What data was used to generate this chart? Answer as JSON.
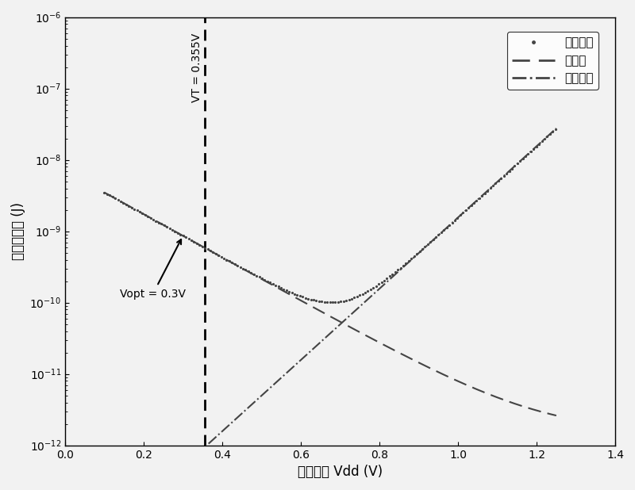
{
  "xlim": [
    0,
    1.4
  ],
  "ylim": [
    1e-12,
    1e-06
  ],
  "vt": 0.355,
  "vopt": 0.3,
  "xlabel": "电源电压 Vdd (V)",
  "ylabel": "每操作能耗 (J)",
  "legend_total": "全部能耗",
  "legend_leakage": "漏能耗",
  "legend_dynamic": "动态能耗",
  "vt_label": "VT = 0.355V",
  "vopt_label": "Vopt = 0.3V",
  "background_color": "#f2f2f2",
  "text_color": "#000000",
  "total_color": "#555555",
  "leakage_color": "#555555",
  "dynamic_color": "#555555",
  "xticks": [
    0,
    0.2,
    0.4,
    0.6,
    0.8,
    1.0,
    1.2,
    1.4
  ],
  "leakage_A": 3.5e-09,
  "leakage_k": 7.0,
  "leakage_floor": 1.5e-12,
  "dynamic_A": 5e-14,
  "dynamic_k": 11.5,
  "vt_linestyle_dash": [
    4,
    2
  ]
}
